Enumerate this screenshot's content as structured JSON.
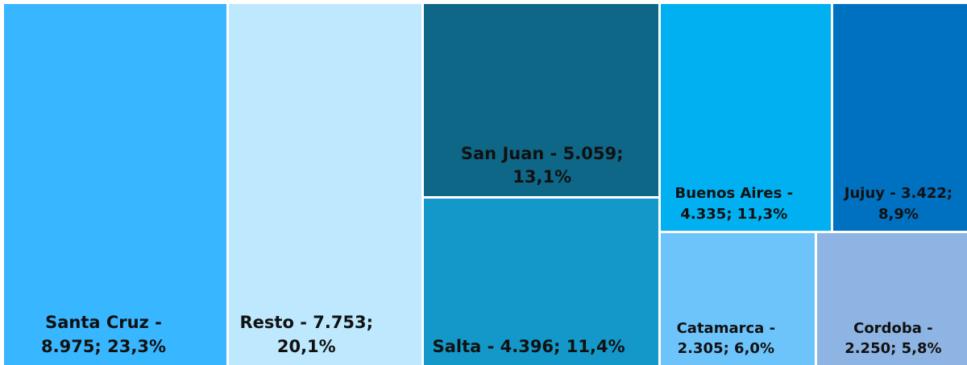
{
  "chart_data": {
    "type": "treemap",
    "labels": [
      "Santa Cruz - 8.975; 23,3%",
      "Resto - 7.753; 20,1%",
      "San Juan - 5.059; 13,1%",
      "Salta - 4.396; 11,4%",
      "Buenos Aires - 4.335; 11,3%",
      "Jujuy - 3.422; 8,9%",
      "Catamarca - 2.305; 6,0%",
      "Cordoba - 2.250; 5,8%"
    ],
    "values": [
      8975,
      7753,
      5059,
      4396,
      4335,
      3422,
      2305,
      2250
    ],
    "colors": [
      "#38b6ff",
      "#bde8fd",
      "#0e6787",
      "#1398c9",
      "#00b0f0",
      "#0070c0",
      "#6dc4fb",
      "#8eb4e3"
    ]
  }
}
